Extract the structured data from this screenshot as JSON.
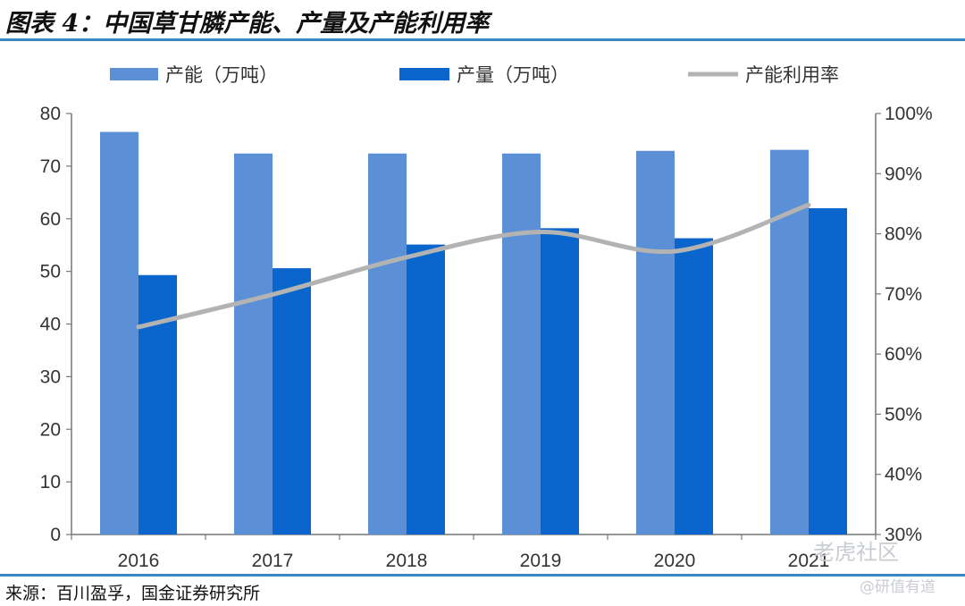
{
  "figure_title": "图表 4：中国草甘膦产能、产量及产能利用率",
  "source": "来源：百川盈孚，国金证券研究所",
  "watermark": {
    "line1": "老虎社区",
    "line2": "@研值有道"
  },
  "colors": {
    "capacity": "#5b8fd6",
    "output": "#0a66cc",
    "rate": "#b3b3b3",
    "rule": "#3f86c7"
  },
  "chart_data": {
    "type": "bar",
    "title": "",
    "xlabel": "",
    "ylabel": "",
    "categories": [
      "2016",
      "2017",
      "2018",
      "2019",
      "2020",
      "2021"
    ],
    "series": [
      {
        "name": "产能（万吨）",
        "type": "bar",
        "axis": "left",
        "values": [
          76.5,
          72.4,
          72.4,
          72.4,
          72.9,
          73.1
        ]
      },
      {
        "name": "产量（万吨）",
        "type": "bar",
        "axis": "left",
        "values": [
          49.3,
          50.6,
          55.1,
          58.2,
          56.3,
          62.0
        ]
      },
      {
        "name": "产能利用率",
        "type": "line",
        "axis": "right",
        "smooth": true,
        "values": [
          0.645,
          0.699,
          0.761,
          0.803,
          0.771,
          0.848
        ]
      }
    ],
    "ylim": [
      0,
      80
    ],
    "yticks": [
      "0",
      "10",
      "20",
      "30",
      "40",
      "50",
      "60",
      "70",
      "80"
    ],
    "y2lim": [
      0.3,
      1.0
    ],
    "y2ticks": [
      "30%",
      "40%",
      "50%",
      "60%",
      "70%",
      "80%",
      "90%",
      "100%"
    ],
    "grid": false,
    "legend_position": "top"
  }
}
